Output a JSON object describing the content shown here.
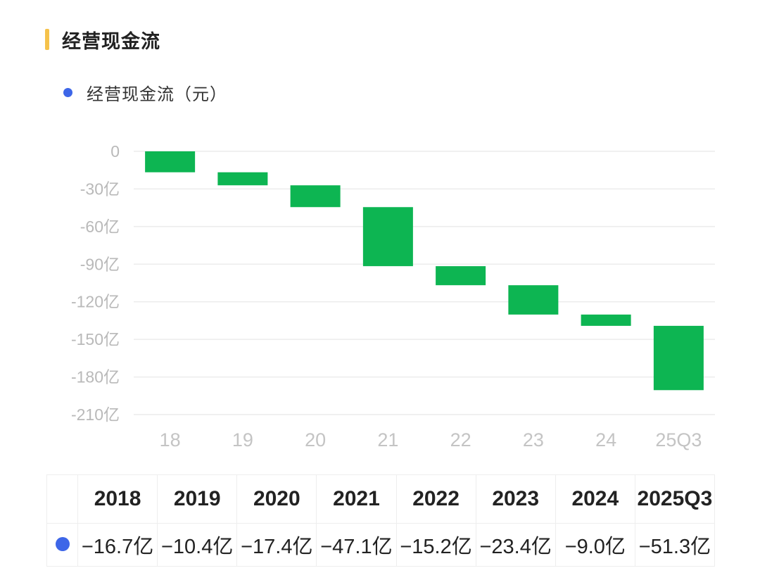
{
  "header": {
    "title": "经营现金流"
  },
  "legend": {
    "label": "经营现金流（元）",
    "color": "#3d66e8"
  },
  "chart_data": {
    "type": "bar",
    "subtype": "waterfall",
    "categories": [
      "18",
      "19",
      "20",
      "21",
      "22",
      "23",
      "24",
      "25Q3"
    ],
    "values": [
      -16.7,
      -10.4,
      -17.4,
      -47.1,
      -15.2,
      -23.4,
      -9.0,
      -51.3
    ],
    "unit": "亿",
    "ylim": [
      -210,
      0
    ],
    "yticks": [
      "0",
      "-30亿",
      "-60亿",
      "-90亿",
      "-120亿",
      "-150亿",
      "-180亿",
      "-210亿"
    ],
    "ytick_values": [
      0,
      -30,
      -60,
      -90,
      -120,
      -150,
      -180,
      -210
    ],
    "bar_color": "#0db552",
    "grid": true
  },
  "table": {
    "headers": [
      "2018",
      "2019",
      "2020",
      "2021",
      "2022",
      "2023",
      "2024",
      "2025Q3"
    ],
    "values": [
      "−16.7亿",
      "−10.4亿",
      "−17.4亿",
      "−47.1亿",
      "−15.2亿",
      "−23.4亿",
      "−9.0亿",
      "−51.3亿"
    ]
  }
}
